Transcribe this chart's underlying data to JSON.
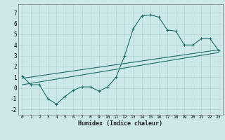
{
  "title": "",
  "xlabel": "Humidex (Indice chaleur)",
  "bg_color": "#cde8e8",
  "grid_color": "#b8d8d8",
  "line_color": "#1a6e6a",
  "xlim": [
    -0.5,
    23.5
  ],
  "ylim": [
    -2.5,
    7.8
  ],
  "xticks": [
    0,
    1,
    2,
    3,
    4,
    5,
    6,
    7,
    8,
    9,
    10,
    11,
    12,
    13,
    14,
    15,
    16,
    17,
    18,
    19,
    20,
    21,
    22,
    23
  ],
  "yticks": [
    -2,
    -1,
    0,
    1,
    2,
    3,
    4,
    5,
    6,
    7
  ],
  "line1_x": [
    0,
    1,
    2,
    3,
    4,
    5,
    6,
    7,
    8,
    9,
    10,
    11,
    12,
    13,
    14,
    15,
    16,
    17,
    18,
    19,
    20,
    21,
    22,
    23
  ],
  "line1_y": [
    1.1,
    0.3,
    0.3,
    -1.0,
    -1.5,
    -0.8,
    -0.2,
    0.1,
    0.1,
    -0.3,
    0.1,
    1.0,
    3.0,
    5.5,
    6.7,
    6.8,
    6.6,
    5.4,
    5.3,
    4.0,
    4.0,
    4.6,
    4.6,
    3.5
  ],
  "line2_x": [
    0,
    23
  ],
  "line2_y": [
    0.3,
    3.3
  ],
  "line3_x": [
    0,
    23
  ],
  "line3_y": [
    0.9,
    3.55
  ]
}
